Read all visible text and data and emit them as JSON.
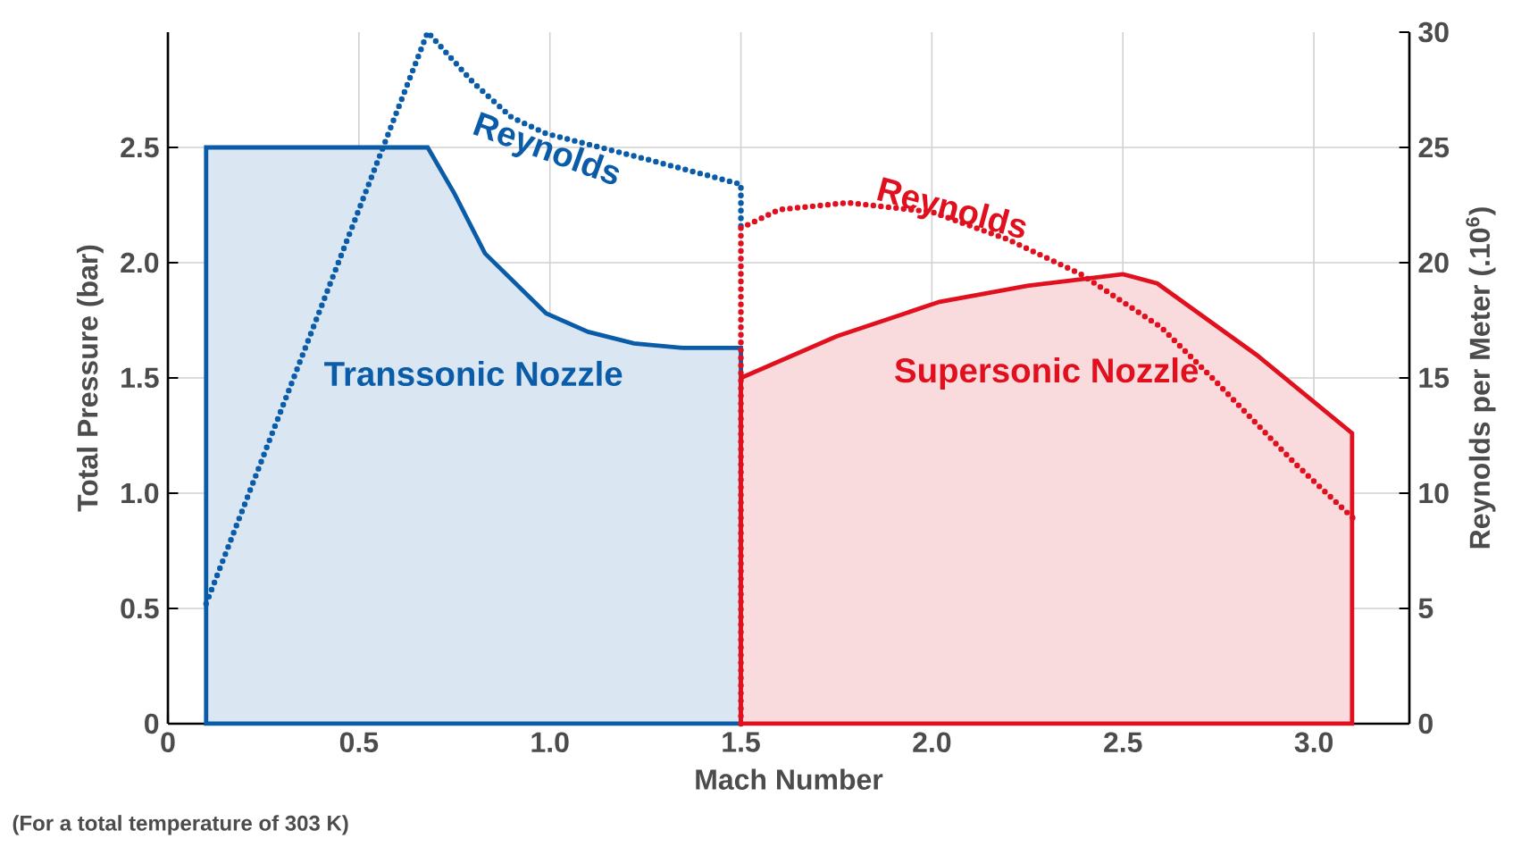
{
  "chart_data": {
    "type": "line",
    "xlabel": "Mach Number",
    "ylabel": "Total Pressure (bar)",
    "y2label": "Reynolds per Meter (.10$^{6}$)",
    "xlim": [
      0,
      3.25
    ],
    "xticks": [
      0,
      0.5,
      {
        "value": 1,
        "label": "1.0"
      },
      1.5,
      {
        "value": 2,
        "label": "2.0"
      },
      2.5,
      {
        "value": 3,
        "label": "3.0"
      }
    ],
    "ylim": [
      0,
      3
    ],
    "yticks": [
      0,
      0.5,
      {
        "value": 1,
        "label": "1.0"
      },
      1.5,
      {
        "value": 2,
        "label": "2.0"
      },
      2.5
    ],
    "y2lim": [
      0,
      30
    ],
    "y2ticks": [
      0,
      5,
      10,
      15,
      20,
      25,
      30
    ],
    "grid": true,
    "marker": "none",
    "series": [
      {
        "type": "area",
        "color": "#0a5ca8",
        "x": [
          0.1,
          0.68,
          0.75,
          0.83,
          0.99,
          1.1,
          1.22,
          1.35,
          1.5
        ],
        "values": [
          2.5,
          2.5,
          2.3,
          2.04,
          1.78,
          1.7,
          1.65,
          1.63,
          1.63
        ]
      },
      {
        "type": "area",
        "color": "#e0101e",
        "x": [
          1.5,
          1.75,
          2.02,
          2.25,
          2.5,
          2.59,
          2.85,
          3.1
        ],
        "values": [
          1.5,
          1.68,
          1.83,
          1.9,
          1.95,
          1.91,
          1.6,
          1.26
        ]
      },
      {
        "type": "line",
        "axis": "y2",
        "line_style": "dotted",
        "color": "#0a5ca8",
        "x": [
          0.1,
          0.68,
          0.8,
          0.9,
          0.99,
          1.25,
          1.5,
          1.5
        ],
        "values": [
          5.2,
          30,
          27.8,
          26.3,
          25.6,
          24.5,
          23.4,
          21.5
        ]
      },
      {
        "type": "line",
        "axis": "y2",
        "line_style": "dotted",
        "color": "#e0101e",
        "x": [
          1.5,
          1.5,
          1.6,
          1.78,
          2.0,
          2.2,
          2.39,
          2.6,
          2.74,
          2.95,
          3.11
        ],
        "values": [
          0,
          21.5,
          22.3,
          22.6,
          22.2,
          21.0,
          19.5,
          17.2,
          14.9,
          11.3,
          8.8
        ]
      }
    ],
    "annotations": [
      "Transsonic Nozzle",
      "Supersonic Nozzle",
      "(For a total temperature of 303 K)",
      "Reynolds",
      "Reynolds"
    ]
  }
}
